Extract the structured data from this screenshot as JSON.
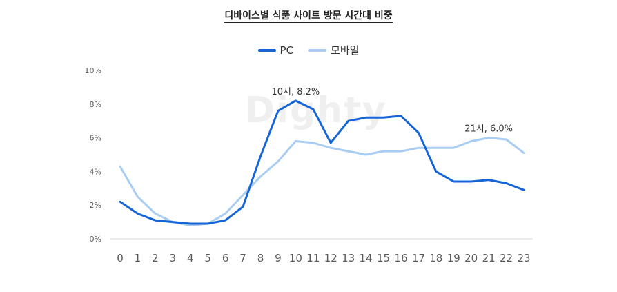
{
  "chart_data": {
    "type": "line",
    "title": "디바이스별 식품 사이트 방문 시간대 비중",
    "watermark": "Dighty",
    "categories": [
      "0",
      "1",
      "2",
      "3",
      "4",
      "5",
      "6",
      "7",
      "8",
      "9",
      "10",
      "11",
      "12",
      "13",
      "14",
      "15",
      "16",
      "17",
      "18",
      "19",
      "20",
      "21",
      "22",
      "23"
    ],
    "series": [
      {
        "name": "PC",
        "color": "#1565d8",
        "values": [
          2.2,
          1.5,
          1.1,
          1.0,
          0.9,
          0.9,
          1.1,
          1.9,
          4.9,
          7.6,
          8.2,
          7.7,
          5.7,
          7.0,
          7.2,
          7.2,
          7.3,
          6.3,
          4.0,
          3.4,
          3.4,
          3.5,
          3.3,
          2.9
        ]
      },
      {
        "name": "모바일",
        "color": "#a9cdf2",
        "values": [
          4.3,
          2.5,
          1.5,
          1.0,
          0.8,
          0.9,
          1.5,
          2.6,
          3.7,
          4.6,
          5.8,
          5.7,
          5.4,
          5.2,
          5.0,
          5.2,
          5.2,
          5.4,
          5.4,
          5.4,
          5.8,
          6.0,
          5.9,
          5.1
        ]
      }
    ],
    "yticks": [
      "0%",
      "2%",
      "4%",
      "6%",
      "8%",
      "10%"
    ],
    "ylim": [
      0,
      10
    ],
    "grid": false,
    "legend": "top-center",
    "annotations": [
      {
        "text": "10시, 8.2%",
        "series": 0,
        "index": 10
      },
      {
        "text": "21시, 6.0%",
        "series": 1,
        "index": 21
      }
    ]
  }
}
